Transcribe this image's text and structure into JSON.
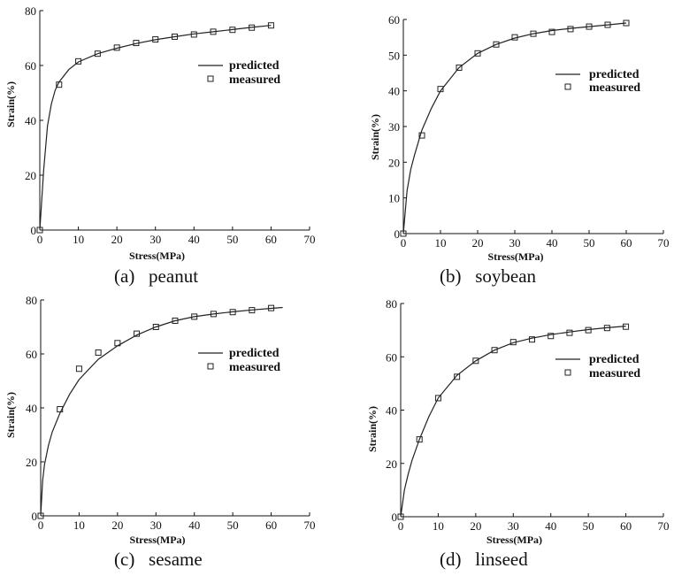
{
  "chart_data": [
    {
      "type": "line",
      "caption": "(a)   peanut",
      "xlabel": "Stress(MPa)",
      "ylabel": "Strain(%)",
      "xlim": [
        0,
        70
      ],
      "ylim": [
        0,
        80
      ],
      "xticks": [
        0,
        10,
        20,
        30,
        40,
        50,
        60,
        70
      ],
      "yticks": [
        0,
        20,
        40,
        60,
        80
      ],
      "legend": {
        "predicted": "predicted",
        "measured": "measured",
        "position": "right-middle"
      },
      "series": [
        {
          "name": "predicted",
          "style": "line",
          "x": [
            0,
            1,
            2,
            3,
            4,
            5,
            7.5,
            10,
            15,
            20,
            25,
            30,
            35,
            40,
            45,
            50,
            55,
            60
          ],
          "y": [
            0,
            22,
            38,
            46,
            51,
            54,
            58.5,
            61.3,
            64.3,
            66.3,
            68,
            69.4,
            70.5,
            71.5,
            72.3,
            73.1,
            73.9,
            74.6
          ]
        },
        {
          "name": "measured",
          "style": "markers",
          "x": [
            0,
            5,
            10,
            15,
            20,
            25,
            30,
            35,
            40,
            45,
            50,
            55,
            60
          ],
          "y": [
            0,
            53,
            61.5,
            64.3,
            66.5,
            68.2,
            69.5,
            70.5,
            71.3,
            72.3,
            73,
            73.8,
            74.6
          ]
        }
      ]
    },
    {
      "type": "line",
      "caption": "(b)   soybean",
      "xlabel": "Stress(MPa)",
      "ylabel": "Strain(%)",
      "xlim": [
        0,
        70
      ],
      "ylim": [
        0,
        60
      ],
      "xticks": [
        0,
        10,
        20,
        30,
        40,
        50,
        60,
        70
      ],
      "yticks": [
        0,
        10,
        20,
        30,
        40,
        50,
        60
      ],
      "legend": {
        "predicted": "predicted",
        "measured": "measured",
        "position": "right-middle"
      },
      "series": [
        {
          "name": "predicted",
          "style": "line",
          "x": [
            0,
            1,
            2,
            3,
            5,
            7.5,
            10,
            15,
            20,
            25,
            30,
            35,
            40,
            45,
            50,
            55,
            60
          ],
          "y": [
            0,
            12,
            18,
            22,
            29,
            35,
            40,
            46.5,
            50.5,
            53,
            54.8,
            56,
            56.9,
            57.5,
            58,
            58.5,
            59
          ]
        },
        {
          "name": "measured",
          "style": "markers",
          "x": [
            0,
            5,
            10,
            15,
            20,
            25,
            30,
            35,
            40,
            45,
            50,
            55,
            60
          ],
          "y": [
            0,
            27.5,
            40.5,
            46.5,
            50.5,
            53,
            55,
            56,
            56.5,
            57.3,
            58,
            58.5,
            59
          ]
        }
      ]
    },
    {
      "type": "line",
      "caption": "(c)   sesame",
      "xlabel": "Stress(MPa)",
      "ylabel": "Strain(%)",
      "xlim": [
        0,
        70
      ],
      "ylim": [
        0,
        80
      ],
      "xticks": [
        0,
        10,
        20,
        30,
        40,
        50,
        60,
        70
      ],
      "yticks": [
        0,
        20,
        40,
        60,
        80
      ],
      "legend": {
        "predicted": "predicted",
        "measured": "measured",
        "position": "right-middle"
      },
      "series": [
        {
          "name": "predicted",
          "style": "line",
          "x": [
            0,
            0.5,
            1,
            2,
            3,
            5,
            7.5,
            10,
            15,
            20,
            25,
            30,
            35,
            40,
            45,
            50,
            55,
            60,
            63
          ],
          "y": [
            0,
            13,
            19,
            26,
            31,
            38,
            45,
            50.5,
            58,
            63,
            67,
            70,
            72.3,
            73.8,
            74.8,
            75.6,
            76.3,
            76.9,
            77.2
          ]
        },
        {
          "name": "measured",
          "style": "markers",
          "x": [
            0,
            5,
            10,
            15,
            20,
            25,
            30,
            35,
            40,
            45,
            50,
            55,
            60
          ],
          "y": [
            0,
            39.5,
            54.5,
            60.5,
            64,
            67.5,
            70,
            72.3,
            73.8,
            74.8,
            75.5,
            76.2,
            77
          ]
        }
      ]
    },
    {
      "type": "line",
      "caption": "(d)   linseed",
      "xlabel": "Stress(MPa)",
      "ylabel": "Strain(%)",
      "xlim": [
        0,
        70
      ],
      "ylim": [
        0,
        80
      ],
      "xticks": [
        0,
        10,
        20,
        30,
        40,
        50,
        60,
        70
      ],
      "yticks": [
        0,
        20,
        40,
        60,
        80
      ],
      "legend": {
        "predicted": "predicted",
        "measured": "measured",
        "position": "right-middle"
      },
      "series": [
        {
          "name": "predicted",
          "style": "line",
          "x": [
            0,
            1,
            2,
            3,
            5,
            7.5,
            10,
            15,
            20,
            25,
            30,
            35,
            40,
            45,
            50,
            55,
            60
          ],
          "y": [
            0,
            10,
            16,
            21,
            29,
            37.5,
            44.5,
            53,
            58.5,
            62.5,
            65.3,
            67,
            68.3,
            69.3,
            70.2,
            70.9,
            71.5
          ]
        },
        {
          "name": "measured",
          "style": "markers",
          "x": [
            0,
            5,
            10,
            15,
            20,
            25,
            30,
            35,
            40,
            45,
            50,
            55,
            60
          ],
          "y": [
            0,
            29,
            44.5,
            52.5,
            58.5,
            62.5,
            65.5,
            66.5,
            67.8,
            69,
            70,
            70.8,
            71.3
          ]
        }
      ]
    }
  ]
}
